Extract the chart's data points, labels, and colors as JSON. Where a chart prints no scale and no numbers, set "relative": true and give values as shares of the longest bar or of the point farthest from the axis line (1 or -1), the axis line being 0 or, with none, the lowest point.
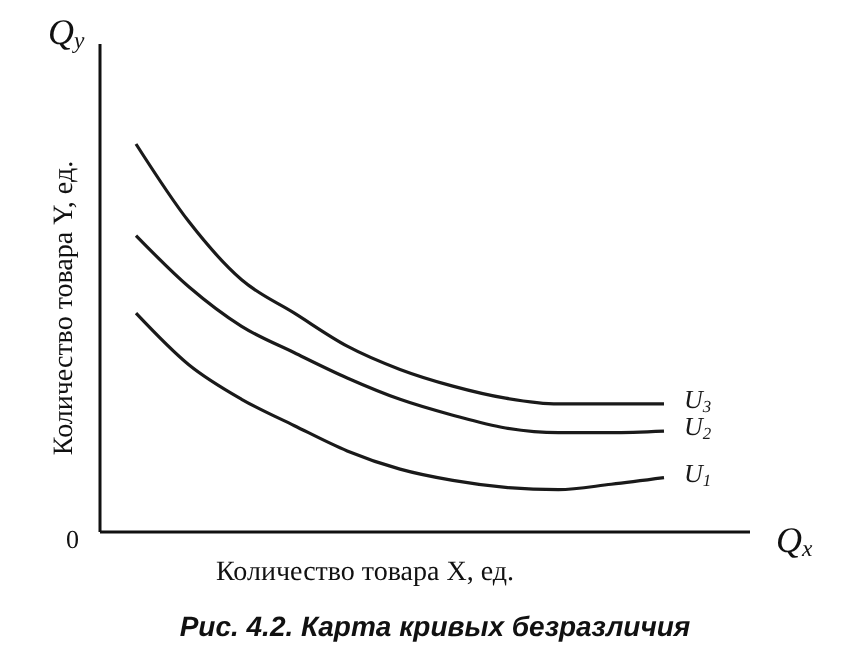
{
  "chart_data": {
    "type": "line",
    "relative": true,
    "title": "Рис. 4.2. Карта кривых безразличия",
    "xlabel": "Количество товара X, ед.",
    "ylabel": "Количество товара Y, ед.",
    "annotations": [
      "Q$_{y}$",
      "Q$_{x}$",
      "0"
    ],
    "categories": [
      null,
      null,
      null,
      null,
      null,
      null,
      null,
      null,
      null,
      null,
      null
    ],
    "legend": false,
    "marker": "none",
    "line_style": "solid",
    "series": [
      {
        "name": "U$_{1}$",
        "color": "#1a1a1a",
        "values": [
          0.564,
          0.431,
          0.342,
          0.274,
          0.209,
          0.162,
          0.133,
          0.115,
          0.109,
          0.123,
          0.14
        ]
      },
      {
        "name": "U$_{2}$",
        "color": "#1a1a1a",
        "values": [
          0.764,
          0.632,
          0.53,
          0.462,
          0.397,
          0.342,
          0.301,
          0.268,
          0.256,
          0.256,
          0.26
        ]
      },
      {
        "name": "U$_{3}$",
        "color": "#1a1a1a",
        "values": [
          1,
          0.8,
          0.65,
          0.564,
          0.479,
          0.419,
          0.376,
          0.345,
          0.33,
          0.33,
          0.33
        ]
      }
    ]
  }
}
